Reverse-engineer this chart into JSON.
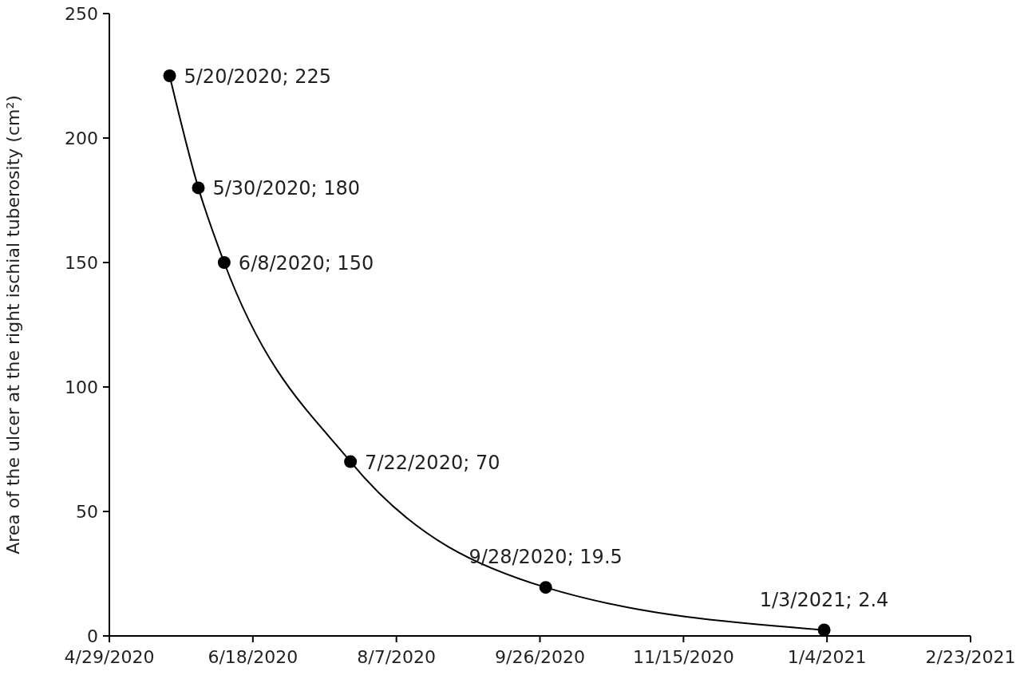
{
  "chart_data": {
    "type": "line",
    "ylabel": "Area of the ulcer at the right ischial tuberosity (cm²)",
    "x": [
      "2020-05-20",
      "2020-05-30",
      "2020-06-08",
      "2020-07-22",
      "2020-09-28",
      "2021-01-03"
    ],
    "series": [
      {
        "color": "#000000",
        "values": [
          225,
          180,
          150,
          70,
          19.5,
          2.4
        ],
        "value_labels": [
          "5/20/2020; 225",
          "5/30/2020; 180",
          "6/8/2020; 150",
          "7/22/2020; 70",
          "9/28/2020; 19.5",
          "1/3/2021; 2.4"
        ]
      }
    ],
    "xlim": [
      "2020-04-29",
      "2021-02-23"
    ],
    "xticks": [
      {
        "value": "2020-04-29",
        "label": "4/29/2020"
      },
      {
        "value": "2020-06-18",
        "label": "6/18/2020"
      },
      {
        "value": "2020-08-07",
        "label": "8/7/2020"
      },
      {
        "value": "2020-09-26",
        "label": "9/26/2020"
      },
      {
        "value": "2020-11-15",
        "label": "11/15/2020"
      },
      {
        "value": "2021-01-04",
        "label": "1/4/2021"
      },
      {
        "value": "2021-02-23",
        "label": "2/23/2021"
      }
    ],
    "ylim": [
      0,
      250
    ],
    "yticks": [
      0,
      50,
      100,
      150,
      200,
      250
    ],
    "marker": "circle",
    "line_style": "solid"
  }
}
